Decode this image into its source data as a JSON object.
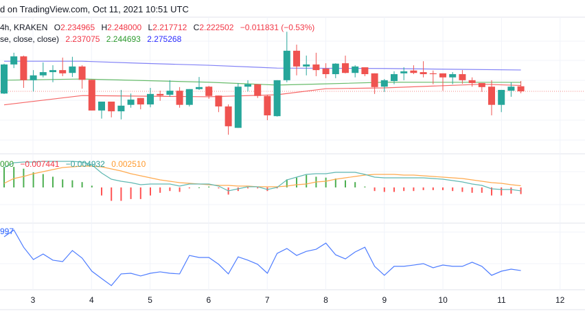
{
  "header": {
    "published": "d on TradingView.com, Oct 11, 2021 10:51 UTC"
  },
  "symbol_legend": {
    "interval_exchange": "4h, KRAKEN",
    "o_label": "O",
    "o": "2.234965",
    "h_label": "H",
    "h": "2.248000",
    "l_label": "L",
    "l": "2.217712",
    "c_label": "C",
    "c": "2.222502",
    "change": "−0.011831 (−0.53%)"
  },
  "ma_legend": {
    "params": "se, close, close)",
    "v1": "2.237075",
    "v2": "2.244693",
    "v3": "2.275268"
  },
  "macd_legend": {
    "v0": "000",
    "hist": "−0.007441",
    "macd": "−0.004932",
    "signal": "0.002510"
  },
  "rsi_legend": {
    "value": "997"
  },
  "colors": {
    "up": "#26a69a",
    "down": "#ef5350",
    "ma1": "#f44a4a",
    "ma2": "#4caf50",
    "ma3": "#6b6bf5",
    "macd": "#5fb8b2",
    "signal": "#ffa94d",
    "rsi": "#4d7cff"
  },
  "chart_data": [
    {
      "type": "candlestick",
      "title": "",
      "x_tick_labels": [
        "3",
        "4",
        "5",
        "6",
        "7",
        "8",
        "9",
        "10",
        "11",
        "12"
      ],
      "candles_per_tick": 6,
      "ohlc": [
        [
          2.217,
          2.291,
          2.216,
          2.289
        ],
        [
          2.289,
          2.318,
          2.28,
          2.309
        ],
        [
          2.309,
          2.311,
          2.231,
          2.25
        ],
        [
          2.25,
          2.275,
          2.222,
          2.262
        ],
        [
          2.262,
          2.294,
          2.257,
          2.27
        ],
        [
          2.27,
          2.287,
          2.245,
          2.275
        ],
        [
          2.275,
          2.306,
          2.26,
          2.267
        ],
        [
          2.268,
          2.308,
          2.258,
          2.284
        ],
        [
          2.284,
          2.287,
          2.229,
          2.251
        ],
        [
          2.251,
          2.251,
          2.175,
          2.175
        ],
        [
          2.175,
          2.197,
          2.155,
          2.197
        ],
        [
          2.197,
          2.197,
          2.158,
          2.173
        ],
        [
          2.173,
          2.226,
          2.153,
          2.187
        ],
        [
          2.189,
          2.217,
          2.182,
          2.202
        ],
        [
          2.206,
          2.206,
          2.178,
          2.19
        ],
        [
          2.19,
          2.231,
          2.183,
          2.216
        ],
        [
          2.216,
          2.224,
          2.199,
          2.212
        ],
        [
          2.214,
          2.25,
          2.209,
          2.224
        ],
        [
          2.224,
          2.233,
          2.182,
          2.189
        ],
        [
          2.189,
          2.228,
          2.185,
          2.228
        ],
        [
          2.228,
          2.258,
          2.226,
          2.233
        ],
        [
          2.234,
          2.236,
          2.204,
          2.211
        ],
        [
          2.212,
          2.212,
          2.171,
          2.185
        ],
        [
          2.185,
          2.19,
          2.115,
          2.136
        ],
        [
          2.132,
          2.243,
          2.132,
          2.234
        ],
        [
          2.234,
          2.25,
          2.222,
          2.24
        ],
        [
          2.24,
          2.24,
          2.206,
          2.211
        ],
        [
          2.211,
          2.214,
          2.151,
          2.163
        ],
        [
          2.161,
          2.25,
          2.16,
          2.25
        ],
        [
          2.25,
          2.37,
          2.245,
          2.323
        ],
        [
          2.323,
          2.338,
          2.262,
          2.284
        ],
        [
          2.284,
          2.311,
          2.262,
          2.289
        ],
        [
          2.289,
          2.318,
          2.26,
          2.275
        ],
        [
          2.279,
          2.292,
          2.255,
          2.265
        ],
        [
          2.265,
          2.292,
          2.255,
          2.291
        ],
        [
          2.292,
          2.311,
          2.267,
          2.268
        ],
        [
          2.268,
          2.287,
          2.257,
          2.284
        ],
        [
          2.282,
          2.282,
          2.26,
          2.265
        ],
        [
          2.267,
          2.267,
          2.216,
          2.233
        ],
        [
          2.234,
          2.253,
          2.221,
          2.25
        ],
        [
          2.248,
          2.272,
          2.24,
          2.265
        ],
        [
          2.267,
          2.282,
          2.25,
          2.272
        ],
        [
          2.274,
          2.287,
          2.265,
          2.268
        ],
        [
          2.27,
          2.297,
          2.257,
          2.265
        ],
        [
          2.267,
          2.274,
          2.24,
          2.265
        ],
        [
          2.267,
          2.267,
          2.224,
          2.257
        ],
        [
          2.257,
          2.27,
          2.24,
          2.265
        ],
        [
          2.265,
          2.275,
          2.241,
          2.25
        ],
        [
          2.25,
          2.257,
          2.234,
          2.243
        ],
        [
          2.243,
          2.243,
          2.221,
          2.233
        ],
        [
          2.234,
          2.25,
          2.163,
          2.189
        ],
        [
          2.189,
          2.226,
          2.171,
          2.226
        ],
        [
          2.224,
          2.245,
          2.209,
          2.234
        ],
        [
          2.234965,
          2.248,
          2.217712,
          2.222502
        ]
      ],
      "last_price": 2.222502,
      "moving_averages": [
        {
          "points": [
            [
              0,
              2.189
            ],
            [
              8,
              2.212
            ],
            [
              21,
              2.209
            ],
            [
              28,
              2.214
            ],
            [
              33,
              2.229
            ],
            [
              39,
              2.231
            ],
            [
              49,
              2.24
            ],
            [
              53,
              2.237075
            ]
          ]
        },
        {
          "points": [
            [
              0,
              2.25
            ],
            [
              8,
              2.253
            ],
            [
              21,
              2.245
            ],
            [
              28,
              2.238
            ],
            [
              33,
              2.241
            ],
            [
              39,
              2.245
            ],
            [
              53,
              2.244693
            ]
          ]
        },
        {
          "points": [
            [
              0,
              2.297
            ],
            [
              8,
              2.297
            ],
            [
              14,
              2.292
            ],
            [
              21,
              2.287
            ],
            [
              28,
              2.28
            ],
            [
              39,
              2.279
            ],
            [
              53,
              2.275268
            ]
          ]
        }
      ]
    },
    {
      "type": "macd",
      "macd": [
        0.029,
        0.036,
        0.037,
        0.037,
        0.038,
        0.038,
        0.038,
        0.038,
        0.037,
        0.033,
        0.021,
        0.012,
        0.009,
        0.007,
        0.004,
        0.005,
        0.005,
        0.005,
        0.002,
        0.005,
        0.005,
        0.005,
        0.002,
        -0.005,
        -0.002,
        0.001,
        0.001,
        -0.003,
        0,
        0.011,
        0.015,
        0.019,
        0.02,
        0.02,
        0.022,
        0.022,
        0.022,
        0.019,
        0.015,
        0.014,
        0.014,
        0.014,
        0.014,
        0.014,
        0.013,
        0.012,
        0.01,
        0.008,
        0.005,
        0.003,
        -0.002,
        -0.003,
        -0.003,
        -0.004932
      ],
      "signal": [
        0.006,
        0.013,
        0.016,
        0.02,
        0.023,
        0.026,
        0.029,
        0.03,
        0.031,
        0.031,
        0.03,
        0.027,
        0.024,
        0.02,
        0.017,
        0.014,
        0.011,
        0.009,
        0.007,
        0.006,
        0.005,
        0.004,
        0.003,
        0.003,
        0.002,
        0.002,
        0.001,
        0.001,
        0.001,
        0.002,
        0.004,
        0.005,
        0.008,
        0.009,
        0.012,
        0.014,
        0.016,
        0.018,
        0.019,
        0.019,
        0.019,
        0.018,
        0.018,
        0.017,
        0.016,
        0.015,
        0.014,
        0.013,
        0.011,
        0.009,
        0.007,
        0.006,
        0.004,
        0.00251
      ],
      "histogram": [
        0.023,
        0.023,
        0.021,
        0.017,
        0.015,
        0.012,
        0.009,
        0.008,
        0.006,
        0.002,
        -0.009,
        -0.015,
        -0.015,
        -0.013,
        -0.013,
        -0.009,
        -0.006,
        -0.004,
        -0.005,
        -0.001,
        0,
        0.001,
        -0.001,
        -0.008,
        -0.004,
        -0.001,
        -0.001,
        -0.004,
        -0.001,
        0.009,
        0.011,
        0.014,
        0.012,
        0.011,
        0.01,
        0.008,
        0.006,
        0.001,
        -0.004,
        -0.005,
        -0.005,
        -0.004,
        -0.004,
        -0.003,
        -0.003,
        -0.003,
        -0.004,
        -0.005,
        -0.006,
        -0.006,
        -0.009,
        -0.009,
        -0.007,
        -0.007441
      ]
    },
    {
      "type": "line",
      "rsi": [
        67.0,
        71.3,
        60.4,
        52.6,
        56.1,
        52.2,
        51.3,
        58.3,
        53.5,
        45.2,
        40.6,
        36.1,
        43.5,
        43.9,
        42.2,
        43.9,
        44.8,
        43.9,
        43.5,
        55.2,
        53.9,
        53.9,
        49.6,
        43.5,
        54.3,
        52.2,
        49.6,
        43.9,
        56.5,
        59.6,
        55.2,
        57.8,
        59.1,
        63.0,
        55.6,
        53.0,
        57.4,
        60.4,
        48.3,
        42.6,
        48.3,
        48.3,
        49.1,
        50.0,
        47.4,
        49.1,
        48.3,
        48.3,
        50.9,
        48.3,
        42.6,
        45.2,
        46.5,
        45.6
      ]
    }
  ]
}
